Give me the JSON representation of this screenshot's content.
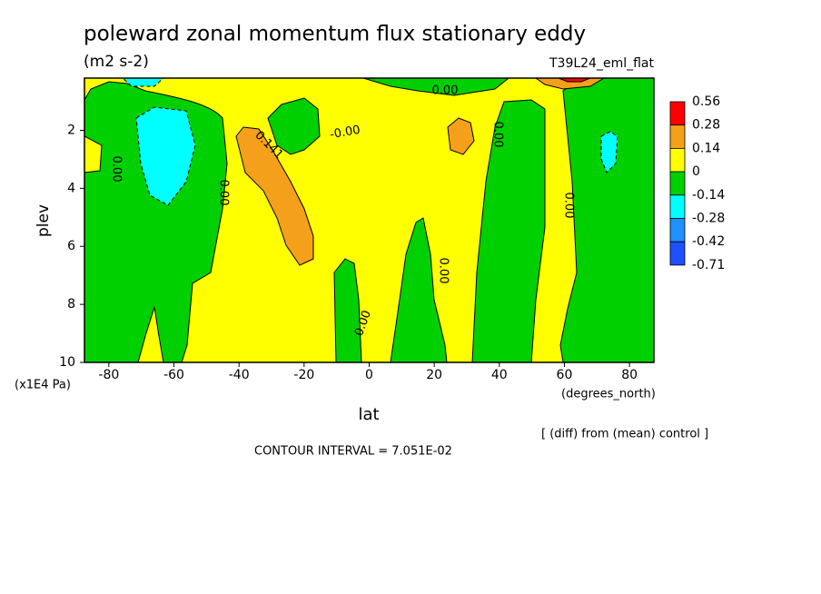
{
  "chart_data": {
    "type": "contour",
    "title": "poleward zonal momentum flux stationary eddy",
    "units": "(m2 s-2)",
    "subtitle": "T39L24_eml_flat",
    "xlabel": "lat",
    "ylabel": "plev",
    "xunit": "(degrees_north)",
    "yunit": "(x1E4 Pa)",
    "note": "[ (diff) from (mean) control ]",
    "contour_interval": "CONTOUR INTERVAL = 7.051E-02",
    "xlim": [
      -87.5,
      87.5
    ],
    "ylim": [
      10,
      0.2
    ],
    "xticks": [
      -80,
      -60,
      -40,
      -20,
      0,
      20,
      40,
      60,
      80
    ],
    "yticks": [
      2,
      4,
      6,
      8,
      10
    ],
    "levels": [
      0.56,
      0.28,
      0.14,
      0,
      -0.14,
      -0.28,
      -0.42,
      -0.71
    ],
    "colors": [
      "#ff0000",
      "#f5a01a",
      "#ffff00",
      "#00d000",
      "#00ffff",
      "#1e90ff",
      "#1e50ff"
    ],
    "contour_labels": [
      {
        "value": 0,
        "label": "0.00"
      },
      {
        "value": 0,
        "label": "-0.00"
      },
      {
        "value": 0.141,
        "label": "0.141"
      },
      {
        "value": 0,
        "label": "0.00"
      },
      {
        "value": 0,
        "label": "0.00"
      },
      {
        "value": 0,
        "label": "0.00"
      },
      {
        "value": 0,
        "label": "0.00"
      },
      {
        "value": 0,
        "label": "0.00"
      },
      {
        "value": 0,
        "label": "0.00"
      }
    ]
  }
}
